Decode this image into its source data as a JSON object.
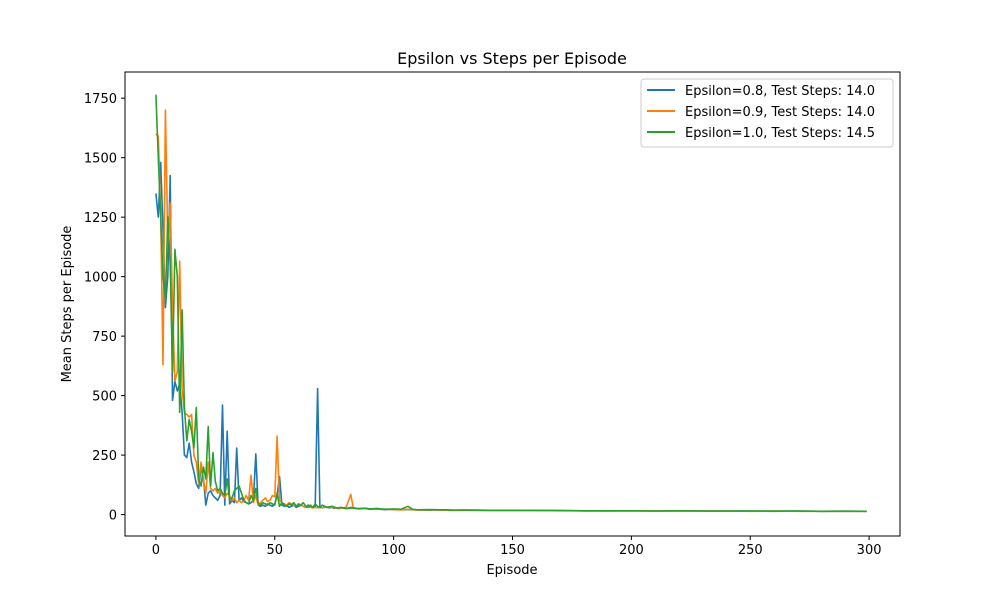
{
  "chart_data": {
    "type": "line",
    "title": "Epsilon vs Steps per Episode",
    "xlabel": "Episode",
    "ylabel": "Mean Steps per Episode",
    "xlim": [
      -13,
      313
    ],
    "ylim": [
      -90,
      1860
    ],
    "xticks": [
      0,
      50,
      100,
      150,
      200,
      250,
      300
    ],
    "yticks": [
      0,
      250,
      500,
      750,
      1000,
      1250,
      1500,
      1750
    ],
    "grid": false,
    "legend_position": "top-right",
    "series": [
      {
        "name": "Epsilon=0.8, Test Steps: 14.0",
        "color": "#1f77b4",
        "points": [
          [
            0,
            1350
          ],
          [
            1,
            1250
          ],
          [
            2,
            1480
          ],
          [
            3,
            1200
          ],
          [
            4,
            870
          ],
          [
            5,
            1000
          ],
          [
            6,
            1425
          ],
          [
            7,
            480
          ],
          [
            8,
            560
          ],
          [
            9,
            520
          ],
          [
            10,
            550
          ],
          [
            11,
            430
          ],
          [
            12,
            250
          ],
          [
            13,
            240
          ],
          [
            14,
            300
          ],
          [
            15,
            220
          ],
          [
            16,
            180
          ],
          [
            17,
            130
          ],
          [
            18,
            110
          ],
          [
            19,
            200
          ],
          [
            20,
            150
          ],
          [
            21,
            40
          ],
          [
            22,
            90
          ],
          [
            23,
            100
          ],
          [
            24,
            80
          ],
          [
            25,
            70
          ],
          [
            26,
            60
          ],
          [
            27,
            80
          ],
          [
            28,
            460
          ],
          [
            29,
            40
          ],
          [
            30,
            350
          ],
          [
            31,
            45
          ],
          [
            32,
            60
          ],
          [
            33,
            50
          ],
          [
            34,
            280
          ],
          [
            35,
            60
          ],
          [
            36,
            70
          ],
          [
            37,
            55
          ],
          [
            38,
            50
          ],
          [
            39,
            45
          ],
          [
            40,
            50
          ],
          [
            41,
            60
          ],
          [
            42,
            255
          ],
          [
            43,
            40
          ],
          [
            44,
            35
          ],
          [
            45,
            40
          ],
          [
            46,
            35
          ],
          [
            47,
            45
          ],
          [
            48,
            40
          ],
          [
            49,
            35
          ],
          [
            50,
            45
          ],
          [
            51,
            80
          ],
          [
            52,
            160
          ],
          [
            53,
            40
          ],
          [
            54,
            35
          ],
          [
            55,
            40
          ],
          [
            56,
            30
          ],
          [
            57,
            35
          ],
          [
            58,
            40
          ],
          [
            59,
            30
          ],
          [
            60,
            35
          ],
          [
            61,
            40
          ],
          [
            62,
            35
          ],
          [
            63,
            30
          ],
          [
            64,
            40
          ],
          [
            65,
            35
          ],
          [
            66,
            30
          ],
          [
            67,
            35
          ],
          [
            68,
            530
          ],
          [
            69,
            30
          ],
          [
            70,
            28
          ],
          [
            71,
            32
          ],
          [
            72,
            30
          ],
          [
            73,
            28
          ],
          [
            74,
            30
          ],
          [
            75,
            26
          ],
          [
            76,
            28
          ],
          [
            77,
            25
          ],
          [
            78,
            30
          ],
          [
            79,
            27
          ],
          [
            80,
            25
          ],
          [
            82,
            30
          ],
          [
            85,
            24
          ],
          [
            88,
            26
          ],
          [
            90,
            22
          ],
          [
            93,
            24
          ],
          [
            96,
            21
          ],
          [
            100,
            22
          ],
          [
            103,
            20
          ],
          [
            106,
            21
          ],
          [
            110,
            20
          ],
          [
            115,
            19
          ],
          [
            120,
            20
          ],
          [
            125,
            18
          ],
          [
            130,
            19
          ],
          [
            140,
            18
          ],
          [
            150,
            17
          ],
          [
            160,
            18
          ],
          [
            170,
            17
          ],
          [
            180,
            16
          ],
          [
            190,
            16
          ],
          [
            200,
            16
          ],
          [
            210,
            15
          ],
          [
            220,
            16
          ],
          [
            230,
            15
          ],
          [
            240,
            15
          ],
          [
            250,
            15
          ],
          [
            260,
            14
          ],
          [
            270,
            15
          ],
          [
            280,
            14
          ],
          [
            290,
            14
          ],
          [
            299,
            14
          ]
        ]
      },
      {
        "name": "Epsilon=0.9, Test Steps: 14.0",
        "color": "#ff7f0e",
        "points": [
          [
            0,
            1600
          ],
          [
            1,
            1590
          ],
          [
            2,
            1260
          ],
          [
            3,
            630
          ],
          [
            4,
            1700
          ],
          [
            5,
            1150
          ],
          [
            6,
            1310
          ],
          [
            7,
            880
          ],
          [
            8,
            560
          ],
          [
            9,
            600
          ],
          [
            10,
            1065
          ],
          [
            11,
            530
          ],
          [
            12,
            430
          ],
          [
            13,
            420
          ],
          [
            14,
            410
          ],
          [
            15,
            420
          ],
          [
            16,
            250
          ],
          [
            17,
            220
          ],
          [
            18,
            130
          ],
          [
            19,
            220
          ],
          [
            20,
            140
          ],
          [
            21,
            90
          ],
          [
            22,
            220
          ],
          [
            23,
            110
          ],
          [
            24,
            100
          ],
          [
            25,
            110
          ],
          [
            26,
            90
          ],
          [
            27,
            100
          ],
          [
            28,
            80
          ],
          [
            29,
            70
          ],
          [
            30,
            90
          ],
          [
            31,
            80
          ],
          [
            32,
            60
          ],
          [
            33,
            70
          ],
          [
            34,
            50
          ],
          [
            35,
            60
          ],
          [
            36,
            50
          ],
          [
            37,
            60
          ],
          [
            38,
            80
          ],
          [
            39,
            60
          ],
          [
            40,
            165
          ],
          [
            41,
            50
          ],
          [
            42,
            80
          ],
          [
            43,
            40
          ],
          [
            44,
            50
          ],
          [
            45,
            60
          ],
          [
            46,
            70
          ],
          [
            47,
            55
          ],
          [
            48,
            60
          ],
          [
            49,
            80
          ],
          [
            50,
            75
          ],
          [
            51,
            330
          ],
          [
            52,
            60
          ],
          [
            53,
            50
          ],
          [
            54,
            45
          ],
          [
            55,
            40
          ],
          [
            56,
            50
          ],
          [
            57,
            45
          ],
          [
            58,
            40
          ],
          [
            59,
            35
          ],
          [
            60,
            45
          ],
          [
            61,
            40
          ],
          [
            62,
            35
          ],
          [
            63,
            30
          ],
          [
            64,
            35
          ],
          [
            65,
            30
          ],
          [
            66,
            28
          ],
          [
            67,
            30
          ],
          [
            68,
            28
          ],
          [
            69,
            30
          ],
          [
            70,
            28
          ],
          [
            72,
            32
          ],
          [
            74,
            30
          ],
          [
            76,
            28
          ],
          [
            78,
            27
          ],
          [
            80,
            30
          ],
          [
            82,
            85
          ],
          [
            83,
            30
          ],
          [
            85,
            25
          ],
          [
            88,
            26
          ],
          [
            90,
            24
          ],
          [
            93,
            22
          ],
          [
            96,
            23
          ],
          [
            100,
            21
          ],
          [
            103,
            20
          ],
          [
            106,
            22
          ],
          [
            110,
            19
          ],
          [
            115,
            20
          ],
          [
            120,
            19
          ],
          [
            125,
            18
          ],
          [
            130,
            18
          ],
          [
            140,
            17
          ],
          [
            150,
            17
          ],
          [
            160,
            17
          ],
          [
            170,
            16
          ],
          [
            180,
            16
          ],
          [
            190,
            15
          ],
          [
            200,
            16
          ],
          [
            210,
            15
          ],
          [
            220,
            15
          ],
          [
            230,
            15
          ],
          [
            240,
            15
          ],
          [
            250,
            14
          ],
          [
            260,
            15
          ],
          [
            270,
            14
          ],
          [
            280,
            14
          ],
          [
            290,
            14
          ],
          [
            299,
            14
          ]
        ]
      },
      {
        "name": "Epsilon=1.0, Test Steps: 14.5",
        "color": "#2ca02c",
        "points": [
          [
            0,
            1765
          ],
          [
            1,
            1500
          ],
          [
            2,
            1250
          ],
          [
            3,
            1000
          ],
          [
            4,
            900
          ],
          [
            5,
            1250
          ],
          [
            6,
            1050
          ],
          [
            7,
            600
          ],
          [
            8,
            1115
          ],
          [
            9,
            1000
          ],
          [
            10,
            430
          ],
          [
            11,
            860
          ],
          [
            12,
            450
          ],
          [
            13,
            310
          ],
          [
            14,
            400
          ],
          [
            15,
            350
          ],
          [
            16,
            280
          ],
          [
            17,
            450
          ],
          [
            18,
            150
          ],
          [
            19,
            120
          ],
          [
            20,
            200
          ],
          [
            21,
            150
          ],
          [
            22,
            370
          ],
          [
            23,
            120
          ],
          [
            24,
            260
          ],
          [
            25,
            140
          ],
          [
            26,
            100
          ],
          [
            27,
            110
          ],
          [
            28,
            90
          ],
          [
            29,
            80
          ],
          [
            30,
            150
          ],
          [
            31,
            60
          ],
          [
            32,
            70
          ],
          [
            33,
            100
          ],
          [
            34,
            110
          ],
          [
            35,
            120
          ],
          [
            36,
            90
          ],
          [
            37,
            60
          ],
          [
            38,
            50
          ],
          [
            39,
            45
          ],
          [
            40,
            80
          ],
          [
            41,
            60
          ],
          [
            42,
            110
          ],
          [
            43,
            50
          ],
          [
            44,
            40
          ],
          [
            45,
            50
          ],
          [
            46,
            45
          ],
          [
            47,
            40
          ],
          [
            48,
            50
          ],
          [
            49,
            45
          ],
          [
            50,
            40
          ],
          [
            51,
            90
          ],
          [
            52,
            35
          ],
          [
            53,
            50
          ],
          [
            54,
            40
          ],
          [
            55,
            35
          ],
          [
            56,
            45
          ],
          [
            57,
            40
          ],
          [
            58,
            50
          ],
          [
            59,
            35
          ],
          [
            60,
            45
          ],
          [
            61,
            40
          ],
          [
            62,
            50
          ],
          [
            63,
            35
          ],
          [
            64,
            30
          ],
          [
            65,
            40
          ],
          [
            66,
            30
          ],
          [
            67,
            45
          ],
          [
            68,
            35
          ],
          [
            69,
            30
          ],
          [
            70,
            40
          ],
          [
            72,
            30
          ],
          [
            74,
            35
          ],
          [
            76,
            28
          ],
          [
            78,
            30
          ],
          [
            80,
            26
          ],
          [
            82,
            28
          ],
          [
            85,
            25
          ],
          [
            88,
            27
          ],
          [
            90,
            24
          ],
          [
            93,
            26
          ],
          [
            96,
            22
          ],
          [
            100,
            24
          ],
          [
            103,
            22
          ],
          [
            106,
            35
          ],
          [
            108,
            22
          ],
          [
            110,
            20
          ],
          [
            115,
            21
          ],
          [
            120,
            20
          ],
          [
            125,
            19
          ],
          [
            130,
            19
          ],
          [
            140,
            18
          ],
          [
            150,
            18
          ],
          [
            160,
            17
          ],
          [
            170,
            17
          ],
          [
            180,
            16
          ],
          [
            190,
            16
          ],
          [
            200,
            16
          ],
          [
            210,
            15
          ],
          [
            220,
            16
          ],
          [
            230,
            15
          ],
          [
            240,
            15
          ],
          [
            250,
            15
          ],
          [
            260,
            15
          ],
          [
            270,
            15
          ],
          [
            280,
            14
          ],
          [
            290,
            15
          ],
          [
            299,
            14
          ]
        ]
      }
    ]
  }
}
